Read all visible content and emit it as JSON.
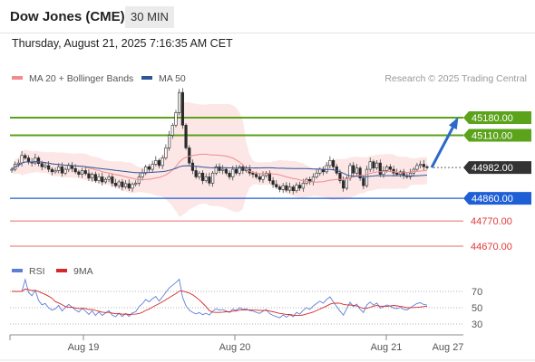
{
  "header": {
    "title": "Dow Jones (CME)",
    "timeframe": "30 MIN",
    "timestamp": "Thursday, August 21, 2025 7:16:35 AM CET"
  },
  "chart_data": {
    "type": "candlestick",
    "instrument": "Dow Jones (CME)",
    "legend": [
      {
        "name": "MA 20 + Bollinger Bands",
        "color": "#f28b8b"
      },
      {
        "name": "MA 50",
        "color": "#2e5597"
      }
    ],
    "copyright": "Research © 2025 Trading Central",
    "x_ticks": [
      "Aug 19",
      "Aug 20",
      "Aug 21",
      "Aug 27"
    ],
    "ylim": [
      44600,
      45300
    ],
    "last_price": 44982,
    "levels": [
      {
        "value": 45180,
        "label": "45180.00",
        "kind": "resistance",
        "color": "#5aa31a"
      },
      {
        "value": 45110,
        "label": "45110.00",
        "kind": "resistance",
        "color": "#5aa31a"
      },
      {
        "value": 44982,
        "label": "44982.00",
        "kind": "last",
        "color": "#333333"
      },
      {
        "value": 44860,
        "label": "44860.00",
        "kind": "pivot",
        "color": "#1f5fd6"
      },
      {
        "value": 44770,
        "label": "44770.00",
        "kind": "support",
        "color": "#e23a3a"
      },
      {
        "value": 44670,
        "label": "44670.00",
        "kind": "support",
        "color": "#e23a3a"
      }
    ],
    "forecast_arrow": {
      "from": 44982,
      "to": 45180,
      "color": "#2a6bc9"
    },
    "price_series": [
      44975,
      44995,
      45000,
      45030,
      45020,
      45005,
      45000,
      45020,
      44998,
      44985,
      44990,
      44975,
      44965,
      44970,
      44985,
      44960,
      44975,
      44990,
      44978,
      44965,
      44955,
      44970,
      44958,
      44940,
      44955,
      44930,
      44945,
      44925,
      44935,
      44945,
      44920,
      44910,
      44925,
      44905,
      44918,
      44900,
      44915,
      44920,
      44945,
      44960,
      44985,
      44975,
      44995,
      45010,
      44990,
      45020,
      45060,
      45110,
      45150,
      45200,
      45280,
      45150,
      45060,
      45000,
      44970,
      44945,
      44960,
      44930,
      44945,
      44920,
      44960,
      44985,
      44970,
      44975,
      44960,
      44945,
      44975,
      44960,
      44985,
      44970,
      44975,
      44960,
      44955,
      44945,
      44935,
      44950,
      44960,
      44930,
      44915,
      44905,
      44895,
      44910,
      44892,
      44905,
      44890,
      44912,
      44900,
      44920,
      44935,
      44925,
      44945,
      44960,
      44975,
      44965,
      44990,
      45010,
      44985,
      44960,
      44930,
      44900,
      44940,
      44990,
      44960,
      44980,
      44940,
      44910,
      44975,
      45005,
      44980,
      45000,
      44955,
      44970,
      44985,
      44975,
      44960,
      44955,
      44965,
      44950,
      44945,
      44960,
      44975,
      44990,
      44995,
      44985,
      44982
    ],
    "rsi": {
      "legend": [
        {
          "name": "RSI",
          "color": "#5b7fd6"
        },
        {
          "name": "9MA",
          "color": "#d62828"
        }
      ],
      "levels": [
        70,
        50,
        30
      ],
      "ylim": [
        20,
        90
      ]
    }
  }
}
